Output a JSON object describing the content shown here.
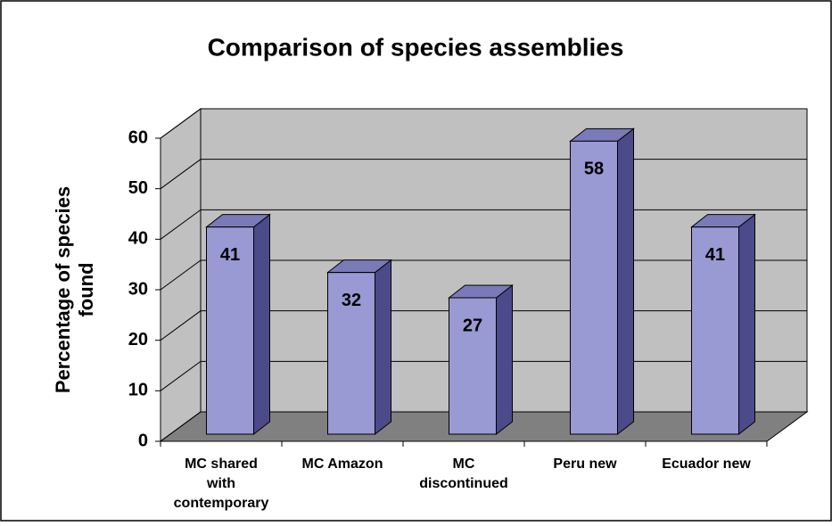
{
  "chart_data": {
    "type": "bar3d",
    "title": "Comparison of species assemblies",
    "ylabel": "Percentage of species found",
    "categories": [
      "MC shared with contemporary",
      "MC Amazon",
      "MC discontinued",
      "Peru new",
      "Ecuador new"
    ],
    "values": [
      41,
      32,
      27,
      58,
      41
    ],
    "color": "#9999d4",
    "ylim": [
      0,
      60
    ],
    "yticks": [
      0,
      10,
      20,
      30,
      40,
      50,
      60
    ],
    "grid": true
  }
}
